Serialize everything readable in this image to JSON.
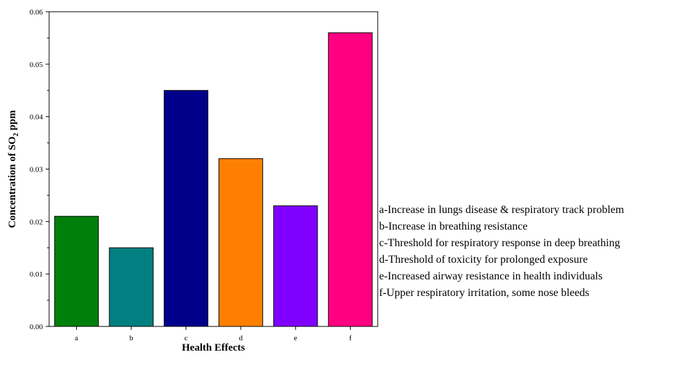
{
  "chart_data": {
    "type": "bar",
    "categories": [
      "a",
      "b",
      "c",
      "d",
      "e",
      "f"
    ],
    "values": [
      0.021,
      0.015,
      0.045,
      0.032,
      0.023,
      0.056
    ],
    "colors": [
      "#00800a",
      "#008080",
      "#00008b",
      "#ff8000",
      "#8000ff",
      "#ff0080"
    ],
    "xlabel": "Health Effects",
    "ylabel": {
      "before": "Concentration of SO",
      "subscript": "2",
      "after": " ppm"
    },
    "ylim": [
      0,
      0.06
    ],
    "yticks": [
      "0.00",
      "0.01",
      "0.02",
      "0.03",
      "0.04",
      "0.05",
      "0.06"
    ],
    "grid": false,
    "legend_items": [
      "a-Increase in lungs disease & respiratory track problem",
      "b-Increase in breathing resistance",
      "c-Threshold for respiratory response in deep breathing",
      "d-Threshold of toxicity for prolonged exposure",
      "e-Increased airway resistance in health individuals",
      "f-Upper respiratory irritation, some nose bleeds"
    ]
  }
}
